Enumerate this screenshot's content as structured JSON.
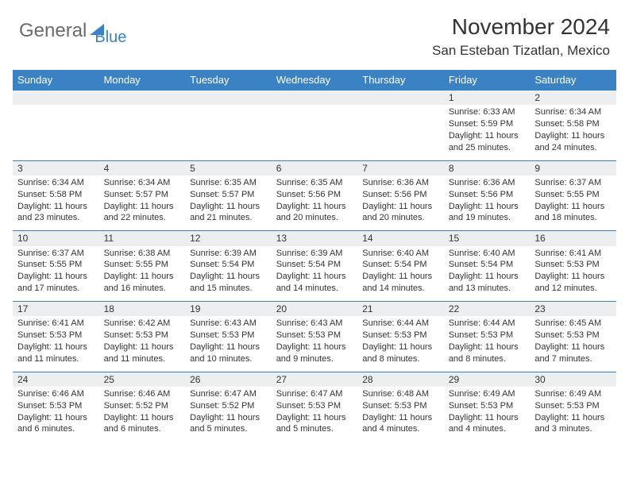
{
  "logo": {
    "text1": "General",
    "text2": "Blue"
  },
  "title": "November 2024",
  "location": "San Esteban Tizatlan, Mexico",
  "colors": {
    "header_bg": "#3b82c4",
    "header_text": "#ffffff",
    "daynum_bg": "#eceef0",
    "border": "#3b82c4",
    "body_text": "#333333",
    "logo_gray": "#6a6a6a",
    "logo_blue": "#3b82c4"
  },
  "weekdays": [
    "Sunday",
    "Monday",
    "Tuesday",
    "Wednesday",
    "Thursday",
    "Friday",
    "Saturday"
  ],
  "weeks": [
    [
      {
        "n": "",
        "sr": "",
        "ss": "",
        "dl": ""
      },
      {
        "n": "",
        "sr": "",
        "ss": "",
        "dl": ""
      },
      {
        "n": "",
        "sr": "",
        "ss": "",
        "dl": ""
      },
      {
        "n": "",
        "sr": "",
        "ss": "",
        "dl": ""
      },
      {
        "n": "",
        "sr": "",
        "ss": "",
        "dl": ""
      },
      {
        "n": "1",
        "sr": "Sunrise: 6:33 AM",
        "ss": "Sunset: 5:59 PM",
        "dl": "Daylight: 11 hours and 25 minutes."
      },
      {
        "n": "2",
        "sr": "Sunrise: 6:34 AM",
        "ss": "Sunset: 5:58 PM",
        "dl": "Daylight: 11 hours and 24 minutes."
      }
    ],
    [
      {
        "n": "3",
        "sr": "Sunrise: 6:34 AM",
        "ss": "Sunset: 5:58 PM",
        "dl": "Daylight: 11 hours and 23 minutes."
      },
      {
        "n": "4",
        "sr": "Sunrise: 6:34 AM",
        "ss": "Sunset: 5:57 PM",
        "dl": "Daylight: 11 hours and 22 minutes."
      },
      {
        "n": "5",
        "sr": "Sunrise: 6:35 AM",
        "ss": "Sunset: 5:57 PM",
        "dl": "Daylight: 11 hours and 21 minutes."
      },
      {
        "n": "6",
        "sr": "Sunrise: 6:35 AM",
        "ss": "Sunset: 5:56 PM",
        "dl": "Daylight: 11 hours and 20 minutes."
      },
      {
        "n": "7",
        "sr": "Sunrise: 6:36 AM",
        "ss": "Sunset: 5:56 PM",
        "dl": "Daylight: 11 hours and 20 minutes."
      },
      {
        "n": "8",
        "sr": "Sunrise: 6:36 AM",
        "ss": "Sunset: 5:56 PM",
        "dl": "Daylight: 11 hours and 19 minutes."
      },
      {
        "n": "9",
        "sr": "Sunrise: 6:37 AM",
        "ss": "Sunset: 5:55 PM",
        "dl": "Daylight: 11 hours and 18 minutes."
      }
    ],
    [
      {
        "n": "10",
        "sr": "Sunrise: 6:37 AM",
        "ss": "Sunset: 5:55 PM",
        "dl": "Daylight: 11 hours and 17 minutes."
      },
      {
        "n": "11",
        "sr": "Sunrise: 6:38 AM",
        "ss": "Sunset: 5:55 PM",
        "dl": "Daylight: 11 hours and 16 minutes."
      },
      {
        "n": "12",
        "sr": "Sunrise: 6:39 AM",
        "ss": "Sunset: 5:54 PM",
        "dl": "Daylight: 11 hours and 15 minutes."
      },
      {
        "n": "13",
        "sr": "Sunrise: 6:39 AM",
        "ss": "Sunset: 5:54 PM",
        "dl": "Daylight: 11 hours and 14 minutes."
      },
      {
        "n": "14",
        "sr": "Sunrise: 6:40 AM",
        "ss": "Sunset: 5:54 PM",
        "dl": "Daylight: 11 hours and 14 minutes."
      },
      {
        "n": "15",
        "sr": "Sunrise: 6:40 AM",
        "ss": "Sunset: 5:54 PM",
        "dl": "Daylight: 11 hours and 13 minutes."
      },
      {
        "n": "16",
        "sr": "Sunrise: 6:41 AM",
        "ss": "Sunset: 5:53 PM",
        "dl": "Daylight: 11 hours and 12 minutes."
      }
    ],
    [
      {
        "n": "17",
        "sr": "Sunrise: 6:41 AM",
        "ss": "Sunset: 5:53 PM",
        "dl": "Daylight: 11 hours and 11 minutes."
      },
      {
        "n": "18",
        "sr": "Sunrise: 6:42 AM",
        "ss": "Sunset: 5:53 PM",
        "dl": "Daylight: 11 hours and 11 minutes."
      },
      {
        "n": "19",
        "sr": "Sunrise: 6:43 AM",
        "ss": "Sunset: 5:53 PM",
        "dl": "Daylight: 11 hours and 10 minutes."
      },
      {
        "n": "20",
        "sr": "Sunrise: 6:43 AM",
        "ss": "Sunset: 5:53 PM",
        "dl": "Daylight: 11 hours and 9 minutes."
      },
      {
        "n": "21",
        "sr": "Sunrise: 6:44 AM",
        "ss": "Sunset: 5:53 PM",
        "dl": "Daylight: 11 hours and 8 minutes."
      },
      {
        "n": "22",
        "sr": "Sunrise: 6:44 AM",
        "ss": "Sunset: 5:53 PM",
        "dl": "Daylight: 11 hours and 8 minutes."
      },
      {
        "n": "23",
        "sr": "Sunrise: 6:45 AM",
        "ss": "Sunset: 5:53 PM",
        "dl": "Daylight: 11 hours and 7 minutes."
      }
    ],
    [
      {
        "n": "24",
        "sr": "Sunrise: 6:46 AM",
        "ss": "Sunset: 5:53 PM",
        "dl": "Daylight: 11 hours and 6 minutes."
      },
      {
        "n": "25",
        "sr": "Sunrise: 6:46 AM",
        "ss": "Sunset: 5:52 PM",
        "dl": "Daylight: 11 hours and 6 minutes."
      },
      {
        "n": "26",
        "sr": "Sunrise: 6:47 AM",
        "ss": "Sunset: 5:52 PM",
        "dl": "Daylight: 11 hours and 5 minutes."
      },
      {
        "n": "27",
        "sr": "Sunrise: 6:47 AM",
        "ss": "Sunset: 5:53 PM",
        "dl": "Daylight: 11 hours and 5 minutes."
      },
      {
        "n": "28",
        "sr": "Sunrise: 6:48 AM",
        "ss": "Sunset: 5:53 PM",
        "dl": "Daylight: 11 hours and 4 minutes."
      },
      {
        "n": "29",
        "sr": "Sunrise: 6:49 AM",
        "ss": "Sunset: 5:53 PM",
        "dl": "Daylight: 11 hours and 4 minutes."
      },
      {
        "n": "30",
        "sr": "Sunrise: 6:49 AM",
        "ss": "Sunset: 5:53 PM",
        "dl": "Daylight: 11 hours and 3 minutes."
      }
    ]
  ]
}
